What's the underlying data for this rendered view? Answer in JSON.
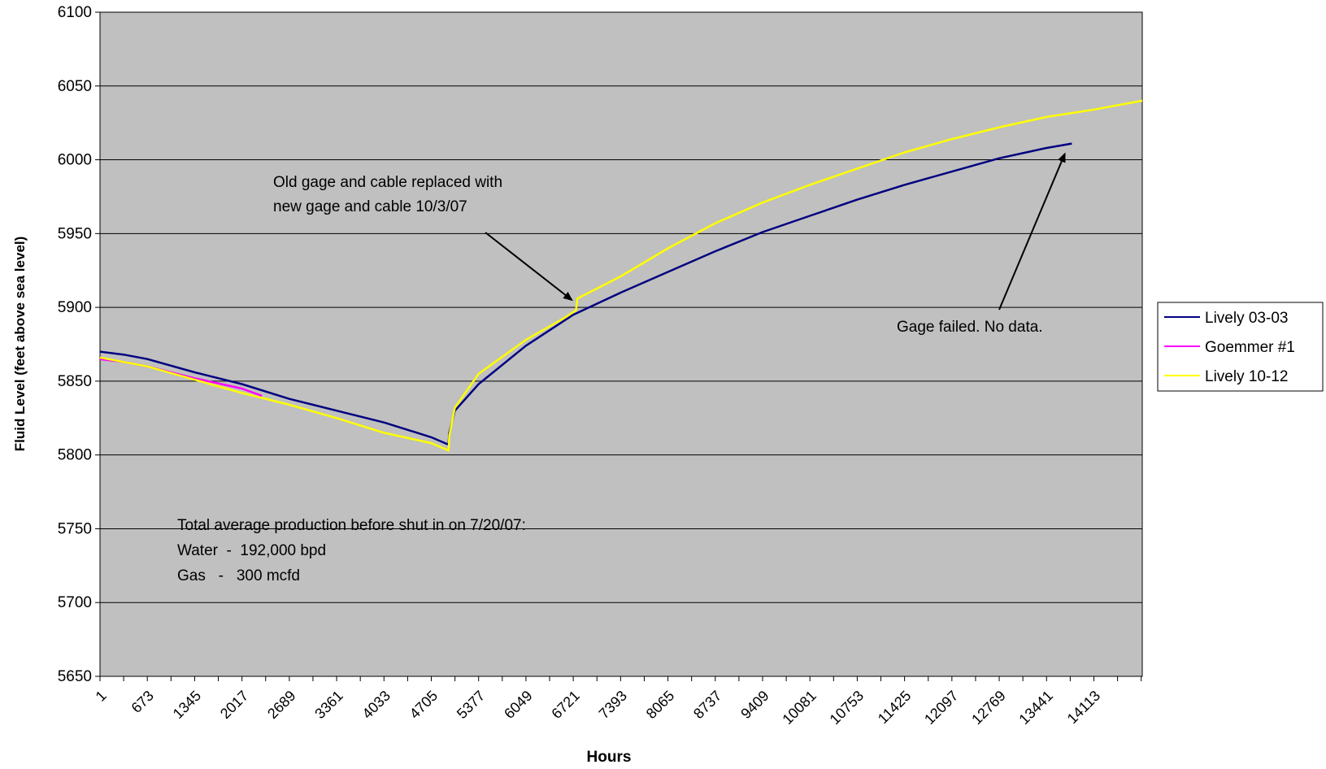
{
  "chart_data": {
    "type": "line",
    "title": "",
    "xlabel": "Hours",
    "ylabel": "Fluid Level (feet above sea level)",
    "xlim": [
      1,
      14800
    ],
    "ylim": [
      5650,
      6100
    ],
    "yticks": [
      5650,
      5700,
      5750,
      5800,
      5850,
      5900,
      5950,
      6000,
      6050,
      6100
    ],
    "xtick_labels": [
      "1",
      "673",
      "1345",
      "2017",
      "2689",
      "3361",
      "4033",
      "4705",
      "5377",
      "6049",
      "6721",
      "7393",
      "8065",
      "8737",
      "9409",
      "10081",
      "10753",
      "11425",
      "12097",
      "12769",
      "13441",
      "14113"
    ],
    "grid": "horizontal",
    "background": "#c0c0c0",
    "legend_position": "right",
    "series": [
      {
        "name": "Lively 03-03",
        "color": "#000080",
        "x": [
          1,
          336,
          673,
          1345,
          2017,
          2689,
          3361,
          4033,
          4705,
          4950,
          4960,
          5040,
          5377,
          6049,
          6721,
          7393,
          8065,
          8737,
          9409,
          10081,
          10753,
          11425,
          12097,
          12769,
          13441,
          13800
        ],
        "y": [
          5870,
          5868,
          5865,
          5856,
          5848,
          5838,
          5830,
          5822,
          5812,
          5807,
          5815,
          5830,
          5848,
          5874,
          5895,
          5910,
          5924,
          5938,
          5951,
          5962,
          5973,
          5983,
          5992,
          6001,
          6008,
          6011
        ]
      },
      {
        "name": "Goemmer #1",
        "color": "#ff00ff",
        "x": [
          1,
          336,
          673,
          1345,
          2017,
          2300
        ],
        "y": [
          5865,
          5863,
          5860,
          5852,
          5845,
          5840
        ]
      },
      {
        "name": "Lively 10-12",
        "color": "#ffff00",
        "x": [
          1,
          336,
          673,
          1345,
          2017,
          2689,
          3361,
          4033,
          4705,
          4950,
          4960,
          5040,
          5377,
          6049,
          6600,
          6760,
          6780,
          7393,
          8065,
          8737,
          9409,
          10081,
          10753,
          11425,
          12097,
          12769,
          13441,
          14113,
          14800
        ],
        "y": [
          5866,
          5863,
          5860,
          5851,
          5842,
          5834,
          5825,
          5815,
          5808,
          5803,
          5813,
          5832,
          5855,
          5878,
          5893,
          5898,
          5906,
          5921,
          5940,
          5957,
          5971,
          5983,
          5994,
          6005,
          6014,
          6022,
          6029,
          6034,
          6040
        ]
      }
    ],
    "annotations": [
      {
        "lines": [
          "Old gage and cable replaced with",
          "new gage and cable 10/3/07"
        ],
        "arrow_to": {
          "x": 6700,
          "y": 5905
        }
      },
      {
        "lines": [
          "Gage failed. No data."
        ],
        "arrow_to": {
          "x": 13700,
          "y": 6004
        }
      },
      {
        "lines": [
          "Total average production before shut in on 7/20/07:",
          "Water  -  192,000 bpd",
          "Gas   -   300 mcfd"
        ]
      }
    ]
  }
}
